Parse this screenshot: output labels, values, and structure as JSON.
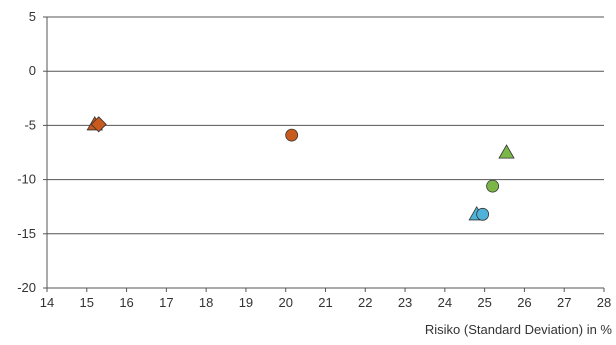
{
  "chart_data": {
    "type": "scatter",
    "xlabel": "Risiko (Standard Deviation) in %",
    "ylabel": "",
    "xlim": [
      14,
      28
    ],
    "ylim": [
      -20,
      5
    ],
    "xticks": [
      14,
      15,
      16,
      17,
      18,
      19,
      20,
      21,
      22,
      23,
      24,
      25,
      26,
      27,
      28
    ],
    "yticks": [
      5,
      0,
      -5,
      -10,
      -15,
      -20
    ],
    "grid": "horizontal",
    "legend": "none",
    "colors": {
      "orange": "#c85a1e",
      "green": "#7ab648",
      "blue": "#4fb3d9",
      "outline": "#333333",
      "grid": "#555555"
    },
    "points": [
      {
        "x": 15.2,
        "y": -4.9,
        "marker": "triangle",
        "color": "orange"
      },
      {
        "x": 15.3,
        "y": -4.9,
        "marker": "diamond",
        "color": "orange"
      },
      {
        "x": 20.15,
        "y": -5.9,
        "marker": "circle",
        "color": "orange"
      },
      {
        "x": 25.55,
        "y": -7.5,
        "marker": "triangle",
        "color": "green"
      },
      {
        "x": 25.2,
        "y": -10.6,
        "marker": "circle",
        "color": "green"
      },
      {
        "x": 24.8,
        "y": -13.2,
        "marker": "triangle",
        "color": "blue"
      },
      {
        "x": 24.95,
        "y": -13.2,
        "marker": "circle",
        "color": "blue"
      }
    ]
  }
}
